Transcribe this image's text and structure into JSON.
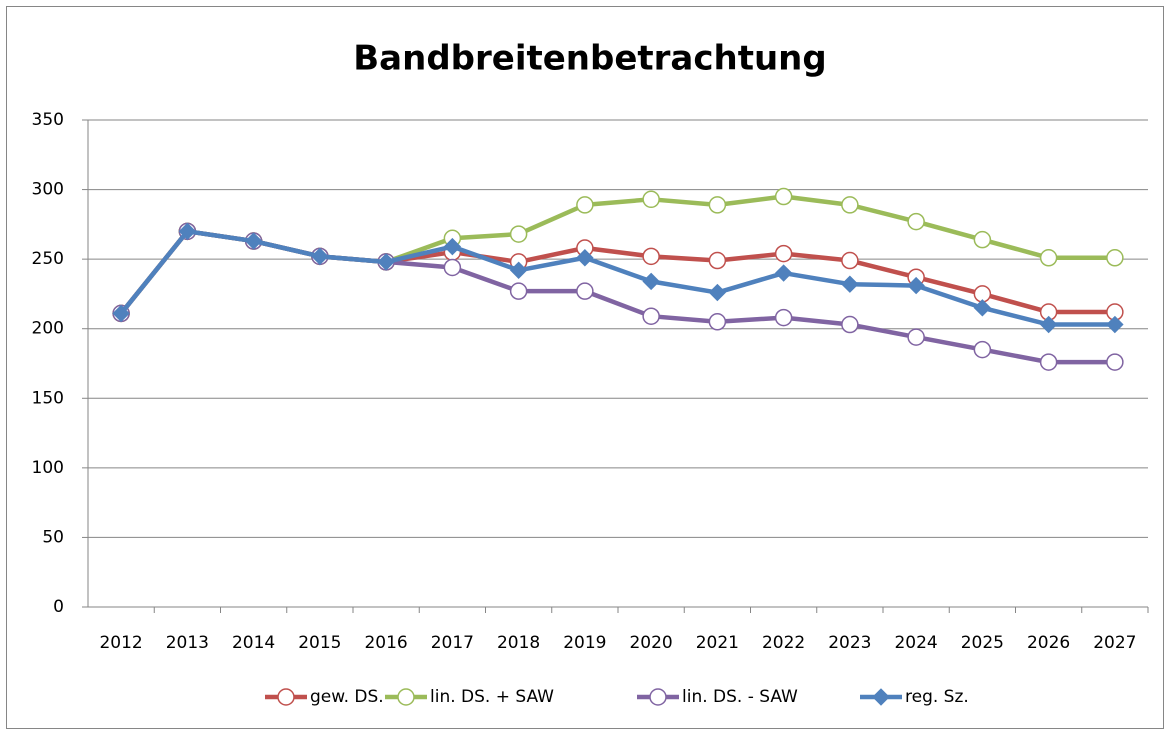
{
  "chart_data": {
    "type": "line",
    "title": "Bandbreitenbetrachtung",
    "categories": [
      "2012",
      "2013",
      "2014",
      "2015",
      "2016",
      "2017",
      "2018",
      "2019",
      "2020",
      "2021",
      "2022",
      "2023",
      "2024",
      "2025",
      "2026",
      "2027"
    ],
    "series": [
      {
        "name": "gew. DS.",
        "color": "#c0504d",
        "marker": "circle",
        "values": [
          211,
          270,
          263,
          252,
          248,
          255,
          248,
          258,
          252,
          249,
          254,
          249,
          237,
          225,
          212,
          212
        ]
      },
      {
        "name": "lin. DS. + SAW",
        "color": "#9bbb59",
        "marker": "circle",
        "values": [
          211,
          270,
          263,
          252,
          248,
          265,
          268,
          289,
          293,
          289,
          295,
          289,
          277,
          264,
          251,
          251
        ]
      },
      {
        "name": "lin. DS. - SAW",
        "color": "#8064a2",
        "marker": "circle",
        "values": [
          211,
          270,
          263,
          252,
          248,
          244,
          227,
          227,
          209,
          205,
          208,
          203,
          194,
          185,
          176,
          176
        ]
      },
      {
        "name": "reg. Sz.",
        "color": "#4f81bd",
        "marker": "diamond",
        "values": [
          211,
          270,
          263,
          252,
          248,
          259,
          242,
          251,
          234,
          226,
          240,
          232,
          231,
          215,
          203,
          203
        ]
      }
    ],
    "ylim": [
      0,
      350
    ],
    "yticks": [
      0,
      50,
      100,
      150,
      200,
      250,
      300,
      350
    ],
    "grid": true,
    "legend": "bottom"
  }
}
